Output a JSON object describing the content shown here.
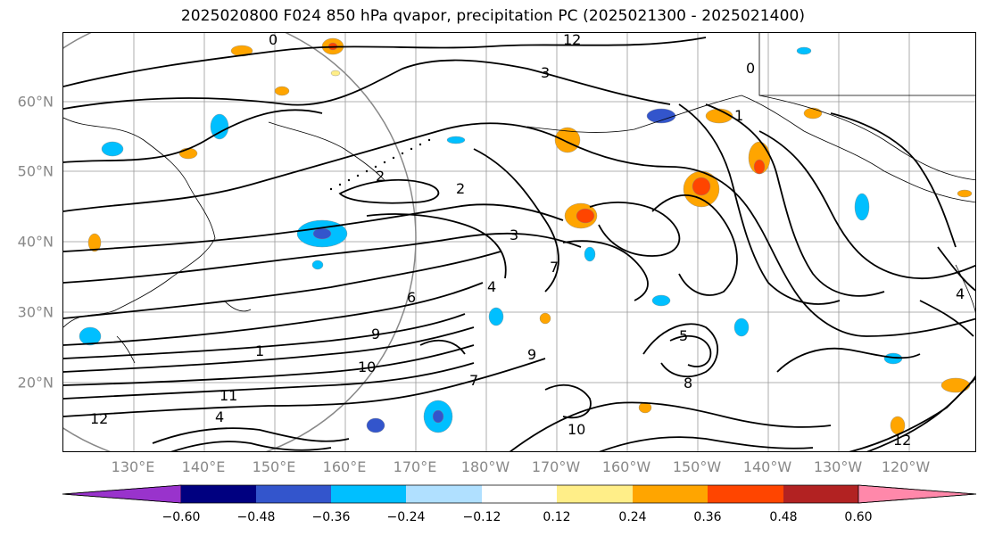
{
  "title": "2025020800 F024 850 hPa qvapor, precipitation PC (2025021300 - 2025021400)",
  "lat_labels": [
    "60°N",
    "50°N",
    "40°N",
    "30°N",
    "20°N"
  ],
  "lon_labels": [
    "130°E",
    "140°E",
    "150°E",
    "160°E",
    "170°E",
    "180°W",
    "170°W",
    "160°W",
    "150°W",
    "140°W",
    "130°W",
    "120°W"
  ],
  "colorbar": {
    "ticks": [
      "−0.60",
      "−0.48",
      "−0.36",
      "−0.24",
      "−0.12",
      "0.12",
      "0.24",
      "0.36",
      "0.48",
      "0.60"
    ],
    "colors": [
      "#9933cc",
      "#000080",
      "#3355cc",
      "#00bfff",
      "#b0e0ff",
      "#ffffff",
      "#ffee88",
      "#ffa500",
      "#ff4500",
      "#b22222",
      "#ff88aa"
    ]
  },
  "contour_labels": [
    {
      "text": "12"
    },
    {
      "text": "0"
    },
    {
      "text": "3"
    },
    {
      "text": "1"
    },
    {
      "text": "0"
    },
    {
      "text": "2"
    },
    {
      "text": "2"
    },
    {
      "text": "3"
    },
    {
      "text": "7"
    },
    {
      "text": "1"
    },
    {
      "text": "4"
    },
    {
      "text": "6"
    },
    {
      "text": "9"
    },
    {
      "text": "7"
    },
    {
      "text": "10"
    },
    {
      "text": "11"
    },
    {
      "text": "12"
    },
    {
      "text": "4"
    },
    {
      "text": "5"
    },
    {
      "text": "8"
    },
    {
      "text": "9"
    },
    {
      "text": "4"
    },
    {
      "text": "12"
    },
    {
      "text": "10"
    }
  ]
}
